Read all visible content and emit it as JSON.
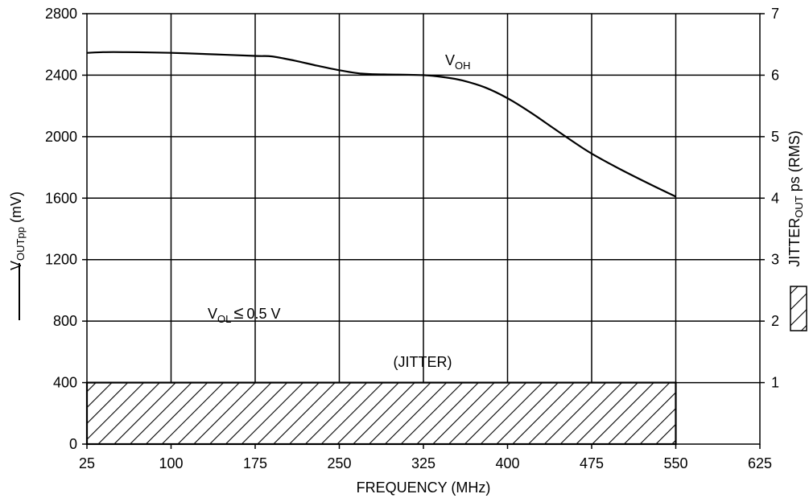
{
  "chart_data": {
    "type": "line",
    "title": "",
    "xlabel": "FREQUENCY (MHz)",
    "ylabel_left": {
      "main": "V",
      "sub": "OUTpp",
      "rest": " (mV)"
    },
    "ylabel_right": {
      "main": "JITTER",
      "sub": "OUT",
      "rest": " ps (RMS)"
    },
    "x_ticks": [
      25,
      100,
      175,
      250,
      325,
      400,
      475,
      550,
      625
    ],
    "xlim": [
      25,
      625
    ],
    "y_left_ticks": [
      0,
      400,
      800,
      1200,
      1600,
      2000,
      2400,
      2800
    ],
    "ylim_left": [
      0,
      2800
    ],
    "y_right_ticks": [
      1,
      2,
      3,
      4,
      5,
      6,
      7
    ],
    "ylim_right": [
      0,
      7
    ],
    "grid": true,
    "series": [
      {
        "name": "VOH",
        "axis": "left",
        "style": "solid-line",
        "x": [
          25,
          40,
          60,
          100,
          140,
          175,
          190,
          210,
          230,
          250,
          270,
          290,
          325,
          345,
          360,
          380,
          400,
          420,
          440,
          460,
          475,
          500,
          530,
          550
        ],
        "y": [
          2545,
          2550,
          2550,
          2545,
          2535,
          2525,
          2522,
          2495,
          2462,
          2432,
          2410,
          2405,
          2400,
          2385,
          2365,
          2320,
          2250,
          2160,
          2060,
          1960,
          1890,
          1790,
          1680,
          1610
        ]
      },
      {
        "name": "JITTER",
        "axis": "right",
        "style": "hatched-bar",
        "x_range": [
          25,
          550
        ],
        "value": 1
      }
    ],
    "annotations": {
      "voh_label": {
        "main": "V",
        "sub": "OH"
      },
      "vol_label": {
        "main": "V",
        "sub": "OL",
        "rest": "0.5 V",
        "symbol": "≤"
      },
      "jitter_label": "(JITTER)"
    },
    "legend": {
      "line_symbol": "solid-line",
      "hatch_symbol": "hatched-box"
    },
    "colors": {
      "line": "#000000",
      "grid": "#000000",
      "hatch": "#000000",
      "background": "#ffffff"
    }
  }
}
